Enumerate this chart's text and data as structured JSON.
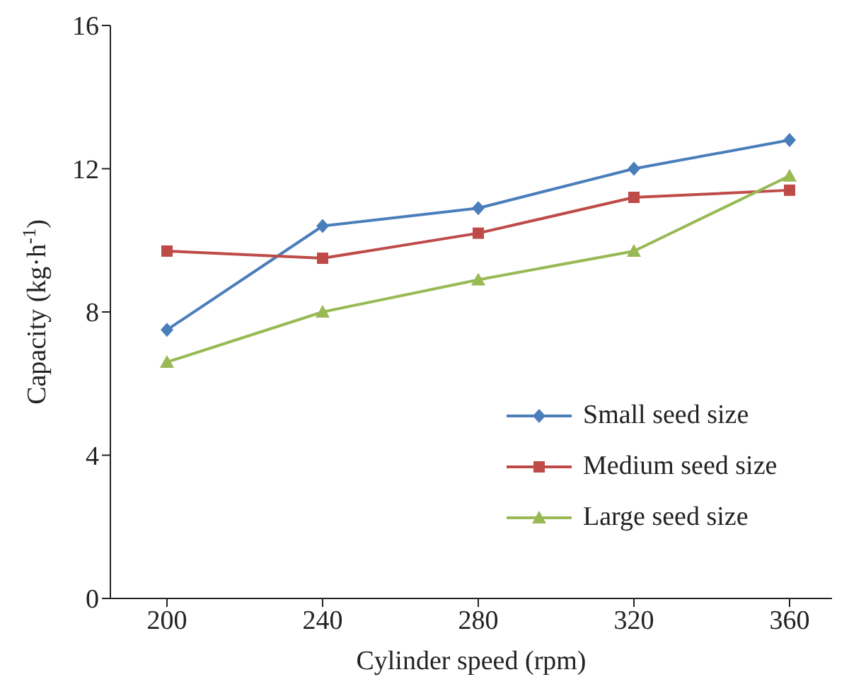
{
  "chart_data": {
    "type": "line",
    "xlabel": "Cylinder speed (rpm)",
    "ylabel": "Capacity (kg·h$^{-1}$)",
    "categories": [
      "200",
      "240",
      "280",
      "320",
      "360"
    ],
    "series": [
      {
        "name": "Small seed size",
        "color": "#4a7ebb",
        "marker": "diamond",
        "values": [
          7.5,
          10.4,
          10.9,
          12.0,
          12.8
        ]
      },
      {
        "name": "Medium seed size",
        "color": "#be4b48",
        "marker": "square",
        "values": [
          9.7,
          9.5,
          10.2,
          11.2,
          11.4
        ]
      },
      {
        "name": "Large seed size",
        "color": "#98b954",
        "marker": "triangle",
        "values": [
          6.6,
          8.0,
          8.9,
          9.7,
          11.8
        ]
      }
    ],
    "ylim": [
      0,
      16
    ],
    "yticks": [
      0,
      4,
      8,
      12,
      16
    ],
    "grid": false,
    "legend": "bottom right",
    "line_style": "solid"
  }
}
